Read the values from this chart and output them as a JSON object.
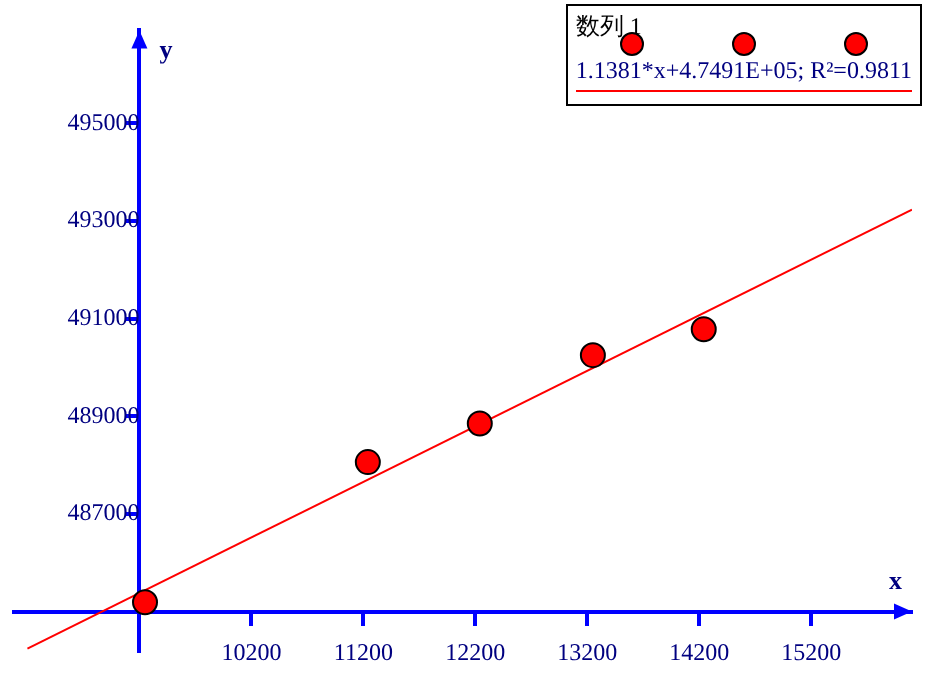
{
  "chart_data": {
    "type": "scatter",
    "xlabel": "x",
    "ylabel": "y",
    "xlim": [
      8080,
      16100
    ],
    "ylim": [
      484180,
      496900
    ],
    "xticks": [
      {
        "value": 9200,
        "label": null
      },
      10200,
      11200,
      12200,
      13200,
      14200,
      15200
    ],
    "yticks": [
      {
        "value": 485000,
        "label": null
      },
      487000,
      489000,
      491000,
      493000,
      495000
    ],
    "grid": false,
    "legend": "top right",
    "marker": "circle",
    "series": [
      {
        "name": "数列 1",
        "color": "#ff0000",
        "x": [
          9250,
          11240,
          12240,
          13250,
          14240
        ],
        "values": [
          485190,
          488060,
          488850,
          490250,
          490780
        ]
      },
      {
        "name": "1.1381*x+4.7491E+05; R²=0.9811",
        "type": "line",
        "color": "#ff0000",
        "marker": "none",
        "x": [
          8200,
          16100
        ],
        "values": [
          484240,
          493230
        ]
      }
    ]
  }
}
